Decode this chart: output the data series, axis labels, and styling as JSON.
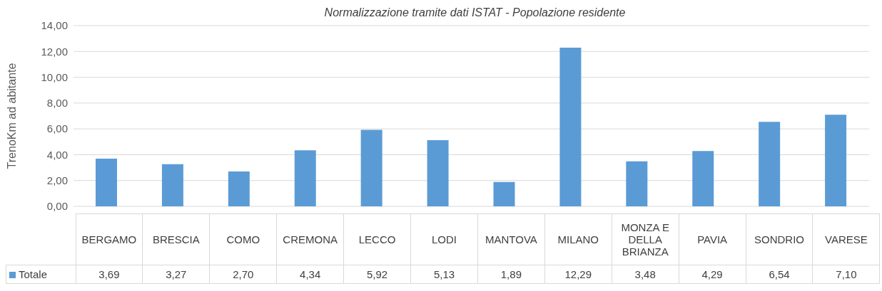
{
  "chart_data": {
    "type": "bar",
    "title": "Normalizzazione tramite dati ISTAT - Popolazione residente",
    "ylabel": "TrenoKm ad abitante",
    "categories": [
      "BERGAMO",
      "BRESCIA",
      "COMO",
      "CREMONA",
      "LECCO",
      "LODI",
      "MANTOVA",
      "MILANO",
      "MONZA E DELLA BRIANZA",
      "PAVIA",
      "SONDRIO",
      "VARESE"
    ],
    "series": [
      {
        "name": "Totale",
        "color": "#5b9bd5",
        "values": [
          3.69,
          3.27,
          2.7,
          4.34,
          5.92,
          5.13,
          1.89,
          12.29,
          3.48,
          4.29,
          6.54,
          7.1
        ],
        "value_labels": [
          "3,69",
          "3,27",
          "2,70",
          "4,34",
          "5,92",
          "5,13",
          "1,89",
          "12,29",
          "3,48",
          "4,29",
          "6,54",
          "7,10"
        ]
      }
    ],
    "ylim": [
      0,
      14
    ],
    "yticks": [
      {
        "value": 0,
        "label": "0,00"
      },
      {
        "value": 2,
        "label": "2,00"
      },
      {
        "value": 4,
        "label": "4,00"
      },
      {
        "value": 6,
        "label": "6,00"
      },
      {
        "value": 8,
        "label": "8,00"
      },
      {
        "value": 10,
        "label": "10,00"
      },
      {
        "value": 12,
        "label": "12,00"
      },
      {
        "value": 14,
        "label": "14,00"
      }
    ],
    "grid": "y",
    "legend": "bottom"
  }
}
